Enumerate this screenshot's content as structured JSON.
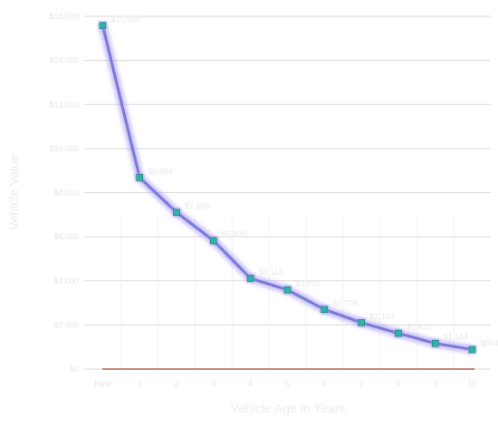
{
  "chart_data": {
    "type": "line",
    "xlabel": "Vehicle Age in Years",
    "ylabel": "Vehicle Value",
    "ylim": [
      0,
      16000
    ],
    "y_ticks": [
      "$0",
      "$2,000",
      "$4,000",
      "$6,000",
      "$8,000",
      "$10,000",
      "$12,000",
      "$14,000",
      "$16,000"
    ],
    "grid": "horizontal",
    "categories": [
      "New",
      "1",
      "2",
      "3",
      "4",
      "5",
      "6",
      "7",
      "8",
      "9",
      "10"
    ],
    "series": [
      {
        "values": [
          15588,
          8684,
          7106,
          5820,
          4114,
          3592,
          2704,
          2104,
          1622,
          1164,
          884
        ],
        "labels": [
          "$15,588",
          "$8,684",
          "$7,106",
          "$5,820",
          "$4,114",
          "$3,592",
          "$2,704",
          "$2,104",
          "$1,622",
          "$1,164",
          "$884"
        ]
      }
    ],
    "line_color": "#7a7ad8",
    "marker_color": "#2fb3a9",
    "baseline_color": "#b5674b"
  }
}
